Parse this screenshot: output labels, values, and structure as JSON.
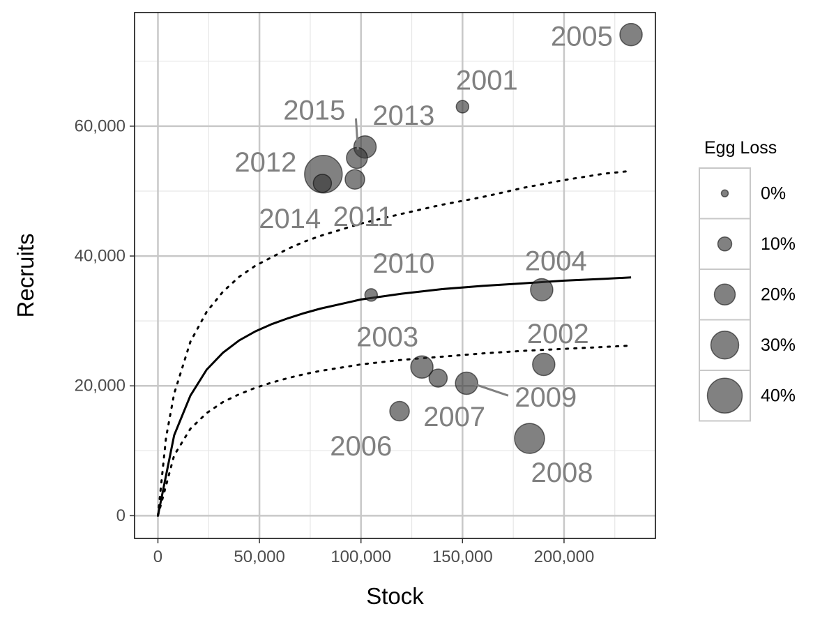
{
  "chart_data": {
    "type": "scatter",
    "xlabel": "Stock",
    "ylabel": "Recruits",
    "xlim": [
      -11500,
      245000
    ],
    "ylim": [
      -3500,
      77500
    ],
    "x_ticks": [
      {
        "value": 0,
        "label": "0"
      },
      {
        "value": 50000,
        "label": "50,000"
      },
      {
        "value": 100000,
        "label": "100,000"
      },
      {
        "value": 150000,
        "label": "150,000"
      },
      {
        "value": 200000,
        "label": "200,000"
      }
    ],
    "y_ticks": [
      {
        "value": 0,
        "label": "0"
      },
      {
        "value": 20000,
        "label": "20,000"
      },
      {
        "value": 40000,
        "label": "40,000"
      },
      {
        "value": 60000,
        "label": "60,000"
      }
    ],
    "grid": true,
    "points": [
      {
        "year": "2001",
        "stock": 150000,
        "recruits": 63000,
        "egg_loss": 8
      },
      {
        "year": "2002",
        "stock": 190000,
        "recruits": 23300,
        "egg_loss": 22
      },
      {
        "year": "2003",
        "stock": 130000,
        "recruits": 22900,
        "egg_loss": 22
      },
      {
        "year": "2004",
        "stock": 189000,
        "recruits": 34800,
        "egg_loss": 22
      },
      {
        "year": "2005",
        "stock": 233000,
        "recruits": 74100,
        "egg_loss": 22
      },
      {
        "year": "2006",
        "stock": 119000,
        "recruits": 16100,
        "egg_loss": 18
      },
      {
        "year": "2007",
        "stock": 138000,
        "recruits": 21200,
        "egg_loss": 16
      },
      {
        "year": "2008",
        "stock": 183000,
        "recruits": 11900,
        "egg_loss": 33
      },
      {
        "year": "2009",
        "stock": 152000,
        "recruits": 20400,
        "egg_loss": 22
      },
      {
        "year": "2010",
        "stock": 105000,
        "recruits": 34000,
        "egg_loss": 8
      },
      {
        "year": "2011",
        "stock": 97000,
        "recruits": 51800,
        "egg_loss": 18
      },
      {
        "year": "2012",
        "stock": 81500,
        "recruits": 52600,
        "egg_loss": 44
      },
      {
        "year": "2013",
        "stock": 102000,
        "recruits": 56800,
        "egg_loss": 22
      },
      {
        "year": "2014",
        "stock": 81000,
        "recruits": 51200,
        "egg_loss": 16
      },
      {
        "year": "2015",
        "stock": 98000,
        "recruits": 55100,
        "egg_loss": 20
      }
    ],
    "labels": [
      {
        "text": "2001",
        "x": 162000,
        "y": 67000,
        "anchor": "middle"
      },
      {
        "text": "2002",
        "x": 197000,
        "y": 28000,
        "anchor": "middle"
      },
      {
        "text": "2003",
        "x": 113000,
        "y": 27500,
        "anchor": "middle"
      },
      {
        "text": "2004",
        "x": 196000,
        "y": 39200,
        "anchor": "middle"
      },
      {
        "text": "2005",
        "x": 224000,
        "y": 73800,
        "anchor": "end"
      },
      {
        "text": "2006",
        "x": 100000,
        "y": 10700,
        "anchor": "middle"
      },
      {
        "text": "2007",
        "x": 146000,
        "y": 15200,
        "anchor": "middle"
      },
      {
        "text": "2008",
        "x": 199000,
        "y": 6600,
        "anchor": "middle"
      },
      {
        "text": "2009",
        "x": 191000,
        "y": 18200,
        "anchor": "middle"
      },
      {
        "text": "2010",
        "x": 121000,
        "y": 38800,
        "anchor": "middle"
      },
      {
        "text": "2011",
        "x": 101000,
        "y": 46000,
        "anchor": "middle"
      },
      {
        "text": "2012",
        "x": 53000,
        "y": 54400,
        "anchor": "middle"
      },
      {
        "text": "2013",
        "x": 121000,
        "y": 61600,
        "anchor": "middle"
      },
      {
        "text": "2014",
        "x": 65000,
        "y": 45700,
        "anchor": "middle"
      },
      {
        "text": "2015",
        "x": 77000,
        "y": 62400,
        "anchor": "middle"
      }
    ],
    "label_segments": [
      {
        "x1": 97500,
        "y1": 61200,
        "x2": 98500,
        "y2": 56400
      },
      {
        "x1": 172500,
        "y1": 18500,
        "x2": 155500,
        "y2": 20300
      }
    ],
    "curves": [
      {
        "name": "fit",
        "style": "solid",
        "x": [
          0,
          8000,
          16000,
          24000,
          32000,
          40000,
          48000,
          56000,
          64000,
          72000,
          80000,
          100000,
          120000,
          140000,
          160000,
          180000,
          200000,
          220000,
          233000
        ],
        "y": [
          0,
          12400,
          18500,
          22500,
          25100,
          27000,
          28400,
          29500,
          30400,
          31200,
          31900,
          33300,
          34200,
          34900,
          35400,
          35800,
          36200,
          36500,
          36700
        ]
      },
      {
        "name": "upper",
        "style": "dotted",
        "x": [
          0,
          4000,
          8000,
          16000,
          24000,
          32000,
          40000,
          48000,
          56000,
          64000,
          72000,
          80000,
          100000,
          120000,
          140000,
          160000,
          180000,
          200000,
          220000,
          233000
        ],
        "y": [
          0,
          12000,
          18800,
          26800,
          31400,
          34500,
          36800,
          38500,
          39800,
          41100,
          42200,
          43100,
          45000,
          46500,
          47900,
          49100,
          50500,
          51700,
          52700,
          53100
        ]
      },
      {
        "name": "lower",
        "style": "dotted",
        "x": [
          0,
          8000,
          16000,
          24000,
          32000,
          40000,
          48000,
          56000,
          64000,
          72000,
          80000,
          100000,
          120000,
          140000,
          160000,
          180000,
          200000,
          220000,
          233000
        ],
        "y": [
          0,
          9300,
          13400,
          15800,
          17500,
          18700,
          19700,
          20500,
          21200,
          21800,
          22300,
          23300,
          24000,
          24500,
          25000,
          25400,
          25700,
          26000,
          26200
        ]
      }
    ],
    "legend": {
      "title": "Egg Loss",
      "placement": "right",
      "items": [
        {
          "label": "0%",
          "value": 0
        },
        {
          "label": "10%",
          "value": 10
        },
        {
          "label": "20%",
          "value": 20
        },
        {
          "label": "30%",
          "value": 30
        },
        {
          "label": "40%",
          "value": 40
        }
      ]
    },
    "colors": {
      "point_fill": "#333333",
      "point_stroke": "#000000",
      "label": "#808080",
      "grid_major": "#c8c8c8",
      "grid_minor": "#e6e6e6"
    }
  }
}
